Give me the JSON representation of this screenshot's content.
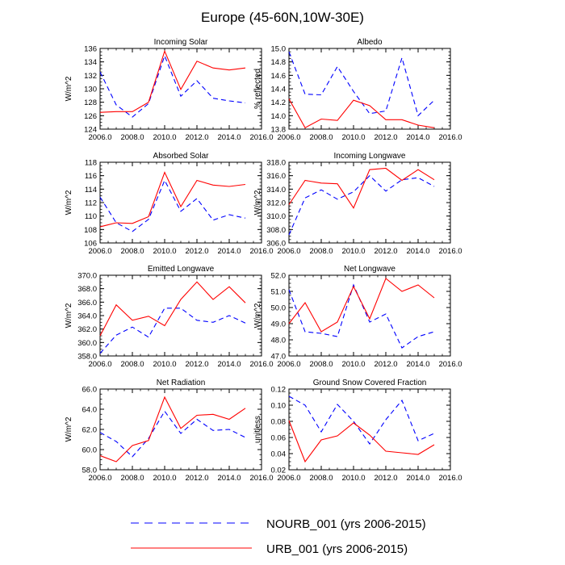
{
  "figure": {
    "title": "Europe (45-60N,10W-30E)"
  },
  "legend": {
    "entries": [
      {
        "label": "NOURB_001 (yrs 2006-2015)",
        "color": "#0000ff",
        "style": "dashed"
      },
      {
        "label": "URB_001 (yrs 2006-2015)",
        "color": "#ff0000",
        "style": "solid"
      }
    ]
  },
  "colors": {
    "nourb": "#0000ff",
    "urb": "#ff0000"
  },
  "chart_data": [
    {
      "type": "line",
      "title": "Incoming Solar",
      "ylabel": "W/m^2",
      "xlim": [
        2006,
        2016
      ],
      "xticks": [
        "2006.0",
        "2008.0",
        "2010.0",
        "2012.0",
        "2014.0",
        "2016.0"
      ],
      "ylim": [
        124,
        136
      ],
      "yticks": [
        "124",
        "126",
        "128",
        "130",
        "132",
        "134",
        "136"
      ],
      "x": [
        2006,
        2007,
        2008,
        2009,
        2010,
        2011,
        2012,
        2013,
        2014,
        2015
      ],
      "series": [
        {
          "name": "NOURB_001 (yrs 2006-2015)",
          "values": [
            132.5,
            127.6,
            125.8,
            127.8,
            134.9,
            128.9,
            131.2,
            128.6,
            128.2,
            127.9
          ]
        },
        {
          "name": "URB_001 (yrs 2006-2015)",
          "values": [
            126.5,
            126.6,
            126.6,
            128.0,
            135.6,
            129.9,
            134.1,
            133.1,
            132.8,
            133.1
          ]
        }
      ]
    },
    {
      "type": "line",
      "title": "Albedo",
      "ylabel": "% reflected",
      "xlim": [
        2006,
        2016
      ],
      "xticks": [
        "2006.0",
        "2008.0",
        "2010.0",
        "2012.0",
        "2014.0",
        "2016.0"
      ],
      "ylim": [
        13.8,
        15.0
      ],
      "yticks": [
        "13.8",
        "14.0",
        "14.2",
        "14.4",
        "14.6",
        "14.8",
        "15.0"
      ],
      "x": [
        2006,
        2007,
        2008,
        2009,
        2010,
        2011,
        2012,
        2013,
        2014,
        2015
      ],
      "series": [
        {
          "name": "NOURB_001 (yrs 2006-2015)",
          "values": [
            14.95,
            14.32,
            14.31,
            14.73,
            14.36,
            14.03,
            14.07,
            14.86,
            14.0,
            14.23
          ]
        },
        {
          "name": "URB_001 (yrs 2006-2015)",
          "values": [
            14.25,
            13.82,
            13.95,
            13.93,
            14.23,
            14.15,
            13.94,
            13.94,
            13.86,
            13.82
          ]
        }
      ]
    },
    {
      "type": "line",
      "title": "Absorbed Solar",
      "ylabel": "W/m^2",
      "xlim": [
        2006,
        2016
      ],
      "xticks": [
        "2006.0",
        "2008.0",
        "2010.0",
        "2012.0",
        "2014.0",
        "2016.0"
      ],
      "ylim": [
        106,
        118
      ],
      "yticks": [
        "106",
        "108",
        "110",
        "112",
        "114",
        "116",
        "118"
      ],
      "x": [
        2006,
        2007,
        2008,
        2009,
        2010,
        2011,
        2012,
        2013,
        2014,
        2015
      ],
      "series": [
        {
          "name": "NOURB_001 (yrs 2006-2015)",
          "values": [
            112.8,
            109.0,
            107.7,
            109.5,
            115.3,
            110.7,
            112.6,
            109.4,
            110.2,
            109.7
          ]
        },
        {
          "name": "URB_001 (yrs 2006-2015)",
          "values": [
            108.4,
            109.0,
            108.9,
            109.9,
            116.5,
            111.4,
            115.3,
            114.6,
            114.4,
            114.7
          ]
        }
      ]
    },
    {
      "type": "line",
      "title": "Incoming Longwave",
      "ylabel": "W/m^2",
      "xlim": [
        2006,
        2016
      ],
      "xticks": [
        "2006.0",
        "2008.0",
        "2010.0",
        "2012.0",
        "2014.0",
        "2016.0"
      ],
      "ylim": [
        306,
        318
      ],
      "yticks": [
        "306.0",
        "308.0",
        "310.0",
        "312.0",
        "314.0",
        "316.0",
        "318.0"
      ],
      "x": [
        2006,
        2007,
        2008,
        2009,
        2010,
        2011,
        2012,
        2013,
        2014,
        2015
      ],
      "series": [
        {
          "name": "NOURB_001 (yrs 2006-2015)",
          "values": [
            307.2,
            312.7,
            313.9,
            312.5,
            313.6,
            316.0,
            313.7,
            315.4,
            315.7,
            314.4
          ]
        },
        {
          "name": "URB_001 (yrs 2006-2015)",
          "values": [
            311.7,
            315.3,
            314.9,
            314.8,
            311.2,
            316.9,
            317.1,
            315.3,
            316.9,
            315.4
          ]
        }
      ]
    },
    {
      "type": "line",
      "title": "Emitted Longwave",
      "ylabel": "W/m^2",
      "xlim": [
        2006,
        2016
      ],
      "xticks": [
        "2006.0",
        "2008.0",
        "2010.0",
        "2012.0",
        "2014.0",
        "2016.0"
      ],
      "ylim": [
        358,
        370
      ],
      "yticks": [
        "358.0",
        "360.0",
        "362.0",
        "364.0",
        "366.0",
        "368.0",
        "370.0"
      ],
      "x": [
        2006,
        2007,
        2008,
        2009,
        2010,
        2011,
        2012,
        2013,
        2014,
        2015
      ],
      "series": [
        {
          "name": "NOURB_001 (yrs 2006-2015)",
          "values": [
            358.4,
            361.1,
            362.3,
            360.8,
            365.1,
            365.1,
            363.3,
            363.0,
            364.0,
            362.9
          ]
        },
        {
          "name": "URB_001 (yrs 2006-2015)",
          "values": [
            361.0,
            365.6,
            363.3,
            363.9,
            362.5,
            366.4,
            369.0,
            366.4,
            368.3,
            365.9
          ]
        }
      ]
    },
    {
      "type": "line",
      "title": "Net Longwave",
      "ylabel": "W/m^2",
      "xlim": [
        2006,
        2016
      ],
      "xticks": [
        "2006.0",
        "2008.0",
        "2010.0",
        "2012.0",
        "2014.0",
        "2016.0"
      ],
      "ylim": [
        47,
        52
      ],
      "yticks": [
        "47.0",
        "48.0",
        "49.0",
        "50.0",
        "51.0",
        "52.0"
      ],
      "x": [
        2006,
        2007,
        2008,
        2009,
        2010,
        2011,
        2012,
        2013,
        2014,
        2015
      ],
      "series": [
        {
          "name": "NOURB_001 (yrs 2006-2015)",
          "values": [
            51.1,
            48.5,
            48.4,
            48.2,
            51.4,
            49.1,
            49.6,
            47.5,
            48.2,
            48.5
          ]
        },
        {
          "name": "URB_001 (yrs 2006-2015)",
          "values": [
            49.0,
            50.3,
            48.5,
            49.1,
            51.3,
            49.3,
            51.8,
            51.0,
            51.4,
            50.6
          ]
        }
      ]
    },
    {
      "type": "line",
      "title": "Net Radiation",
      "ylabel": "W/m^2",
      "xlim": [
        2006,
        2016
      ],
      "xticks": [
        "2006.0",
        "2008.0",
        "2010.0",
        "2012.0",
        "2014.0",
        "2016.0"
      ],
      "ylim": [
        58,
        66
      ],
      "yticks": [
        "58.0",
        "60.0",
        "62.0",
        "64.0",
        "66.0"
      ],
      "x": [
        2006,
        2007,
        2008,
        2009,
        2010,
        2011,
        2012,
        2013,
        2014,
        2015
      ],
      "series": [
        {
          "name": "NOURB_001 (yrs 2006-2015)",
          "values": [
            61.7,
            60.8,
            59.3,
            61.1,
            63.8,
            61.6,
            63.0,
            61.9,
            62.0,
            61.2
          ]
        },
        {
          "name": "URB_001 (yrs 2006-2015)",
          "values": [
            59.4,
            58.8,
            60.4,
            60.9,
            65.2,
            62.1,
            63.4,
            63.5,
            63.0,
            64.1
          ]
        }
      ]
    },
    {
      "type": "line",
      "title": "Ground Snow Covered Fraction",
      "ylabel": "unitless",
      "xlim": [
        2006,
        2016
      ],
      "xticks": [
        "2006.0",
        "2008.0",
        "2010.0",
        "2012.0",
        "2014.0",
        "2016.0"
      ],
      "ylim": [
        0.02,
        0.12
      ],
      "yticks": [
        "0.02",
        "0.04",
        "0.06",
        "0.08",
        "0.10",
        "0.12"
      ],
      "x": [
        2006,
        2007,
        2008,
        2009,
        2010,
        2011,
        2012,
        2013,
        2014,
        2015
      ],
      "series": [
        {
          "name": "NOURB_001 (yrs 2006-2015)",
          "values": [
            0.111,
            0.1,
            0.067,
            0.101,
            0.08,
            0.052,
            0.082,
            0.106,
            0.056,
            0.065
          ]
        },
        {
          "name": "URB_001 (yrs 2006-2015)",
          "values": [
            0.081,
            0.03,
            0.057,
            0.062,
            0.078,
            0.063,
            0.043,
            0.041,
            0.039,
            0.051
          ]
        }
      ]
    }
  ]
}
